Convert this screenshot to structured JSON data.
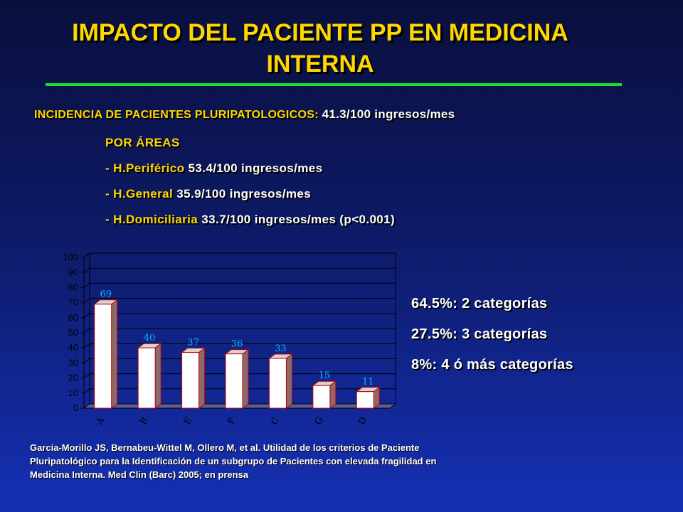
{
  "slide": {
    "title_line1": "IMPACTO DEL PACIENTE PP EN MEDICINA",
    "title_line2": "INTERNA",
    "incidence_label": "INCIDENCIA DE PACIENTES PLURIPATOLOGICOS:",
    "incidence_value": "41.3/100 ingresos/mes",
    "areas_heading": "POR ÁREAS",
    "areas": [
      {
        "name": "- H.Periférico",
        "value": "53.4/100 ingresos/mes"
      },
      {
        "name": "- H.General",
        "value": "35.9/100 ingresos/mes"
      },
      {
        "name": "- H.Domiciliaria",
        "value": "33.7/100 ingresos/mes (p<0.001)"
      }
    ],
    "categories_stats": [
      "64.5%: 2 categorías",
      "27.5%: 3 categorías",
      "8%: 4 ó más categorías"
    ],
    "reference_line1": "García-Morillo JS, Bernabeu-Wittel M, Ollero M, et al. Utilidad de los criterios de Paciente",
    "reference_line2": "Pluripatológico para la Identificación de un subgrupo de Pacientes con elevada fragilidad en",
    "reference_line3": "Medicina Interna. Med Clin (Barc) 2005; en prensa",
    "colors": {
      "title": "#ffd700",
      "rule": "#22d633",
      "bar_front": "#ffffff",
      "bar_side": "#8a6a6a",
      "bar_top": "#d9d2d2",
      "data_label": "#00bfff"
    }
  },
  "chart_data": {
    "type": "bar",
    "categories": [
      "A",
      "B",
      "E",
      "F",
      "C",
      "G",
      "D"
    ],
    "values": [
      69,
      40,
      37,
      36,
      33,
      15,
      11
    ],
    "title": "",
    "xlabel": "",
    "ylabel": "",
    "ylim": [
      0,
      100
    ],
    "yticks": [
      0,
      10,
      20,
      30,
      40,
      50,
      60,
      70,
      80,
      90,
      100
    ],
    "grid": true,
    "legend": "none"
  }
}
